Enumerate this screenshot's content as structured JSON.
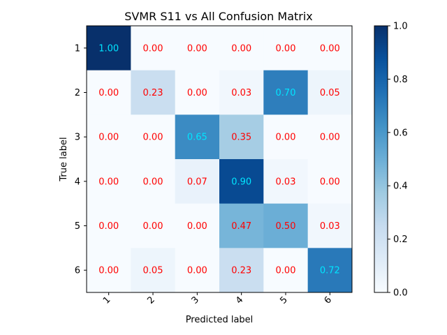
{
  "chart_data": {
    "type": "heatmap",
    "title": "SVMR S11 vs All Confusion Matrix",
    "xlabel": "Predicted label",
    "ylabel": "True label",
    "x_categories": [
      "1",
      "2",
      "3",
      "4",
      "5",
      "6"
    ],
    "y_categories": [
      "1",
      "2",
      "3",
      "4",
      "5",
      "6"
    ],
    "values": [
      [
        1.0,
        0.0,
        0.0,
        0.0,
        0.0,
        0.0
      ],
      [
        0.0,
        0.23,
        0.0,
        0.03,
        0.7,
        0.05
      ],
      [
        0.0,
        0.0,
        0.65,
        0.35,
        0.0,
        0.0
      ],
      [
        0.0,
        0.0,
        0.07,
        0.9,
        0.03,
        0.0
      ],
      [
        0.0,
        0.0,
        0.0,
        0.47,
        0.5,
        0.03
      ],
      [
        0.0,
        0.05,
        0.0,
        0.23,
        0.0,
        0.72
      ]
    ],
    "value_labels": [
      [
        "1.00",
        "0.00",
        "0.00",
        "0.00",
        "0.00",
        "0.00"
      ],
      [
        "0.00",
        "0.23",
        "0.00",
        "0.03",
        "0.70",
        "0.05"
      ],
      [
        "0.00",
        "0.00",
        "0.65",
        "0.35",
        "0.00",
        "0.00"
      ],
      [
        "0.00",
        "0.00",
        "0.07",
        "0.90",
        "0.03",
        "0.00"
      ],
      [
        "0.00",
        "0.00",
        "0.00",
        "0.47",
        "0.50",
        "0.03"
      ],
      [
        "0.00",
        "0.05",
        "0.00",
        "0.23",
        "0.00",
        "0.72"
      ]
    ],
    "colorbar": {
      "range": [
        0.0,
        1.0
      ],
      "ticks": [
        "0.0",
        "0.2",
        "0.4",
        "0.6",
        "0.8",
        "1.0"
      ],
      "colormap": "Blues"
    },
    "x_tick_rotation": "45 degrees",
    "label_colors": {
      "high": "#00e5ff",
      "low": "#ff0000"
    },
    "label_color_threshold": 0.5
  }
}
